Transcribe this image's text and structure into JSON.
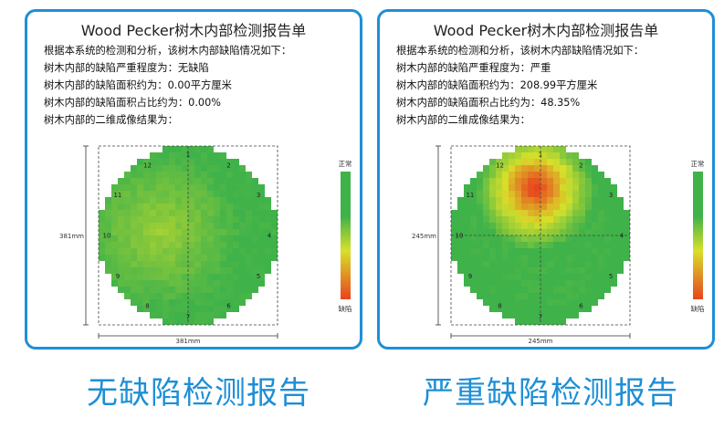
{
  "reports": [
    {
      "title": "Wood Pecker树木内部检测报告单",
      "lines": [
        "根据本系统的检测和分析，该树木内部缺陷情况如下：",
        "树木内部的缺陷严重程度为：无缺陷",
        "树木内部的缺陷面积约为：0.00平方厘米",
        "树木内部的缺陷面积占比约为：0.00%",
        "树木内部的二维成像结果为："
      ],
      "scan": {
        "defect": "none",
        "height_label": "381mm",
        "width_label": "381mm",
        "points": [
          "1",
          "2",
          "3",
          "4",
          "5",
          "6",
          "7",
          "8",
          "9",
          "10",
          "11",
          "12"
        ],
        "legend_top": "正常",
        "legend_bottom": "缺陷",
        "colors": {
          "healthy": "#3fb24a",
          "mid": "#d8e02a",
          "defect": "#e8441e"
        }
      },
      "caption": "无缺陷检测报告"
    },
    {
      "title": "Wood Pecker树木内部检测报告单",
      "lines": [
        "根据本系统的检测和分析，该树木内部缺陷情况如下：",
        "树木内部的缺陷严重程度为：严重",
        "树木内部的缺陷面积约为：208.99平方厘米",
        "树木内部的缺陷面积占比约为：48.35%",
        "树木内部的二维成像结果为："
      ],
      "scan": {
        "defect": "severe",
        "height_label": "245mm",
        "width_label": "245mm",
        "points": [
          "1",
          "2",
          "3",
          "4",
          "5",
          "6",
          "7",
          "8",
          "9",
          "10",
          "11",
          "12"
        ],
        "legend_top": "正常",
        "legend_bottom": "缺陷",
        "colors": {
          "healthy": "#3fb24a",
          "mid": "#d8e02a",
          "defect": "#e8441e"
        }
      },
      "caption": "严重缺陷检测报告"
    }
  ]
}
